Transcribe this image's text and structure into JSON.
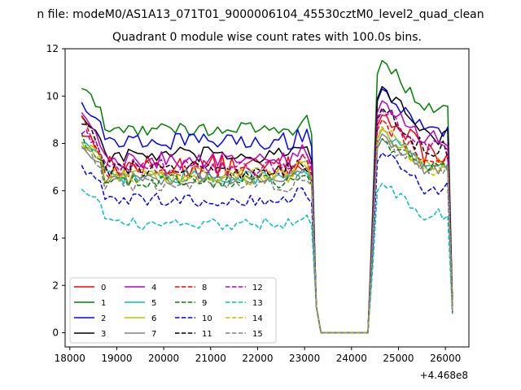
{
  "figure": {
    "suptitle": "n file: modeM0/AS1A13_071T01_9000006104_45530cztM0_level2_quad_clean",
    "title": "Quadrant 0 module wise count rates with 100.0s bins.",
    "offset_text": "+4.468e8"
  },
  "chart_data": {
    "type": "line",
    "title": "Quadrant 0 module wise count rates with 100.0s bins.",
    "xlabel": "",
    "ylabel": "",
    "x_offset": 446800000,
    "xlim": [
      17900,
      26500
    ],
    "ylim": [
      -0.6,
      12.0
    ],
    "xticks": [
      18000,
      19000,
      20000,
      21000,
      22000,
      23000,
      24000,
      25000,
      26000
    ],
    "yticks": [
      0,
      2,
      4,
      6,
      8,
      10,
      12
    ],
    "grid": false,
    "legend_position": "lower-left",
    "legend_columns": 4,
    "segments": [
      {
        "from": 18250,
        "to": 23150,
        "type": "on"
      },
      {
        "from": 23150,
        "to": 23350,
        "type": "fall"
      },
      {
        "from": 23350,
        "to": 24350,
        "type": "off"
      },
      {
        "from": 24350,
        "to": 24650,
        "type": "rise"
      },
      {
        "from": 24650,
        "to": 26100,
        "type": "on"
      },
      {
        "from": 26100,
        "to": 26150,
        "type": "fall"
      }
    ],
    "series": [
      {
        "name": "0",
        "color": "#ff0000",
        "dash": "solid",
        "level1": 7.0,
        "level2": 7.6,
        "start": 8.5,
        "peak": 9.2,
        "end": 1.3,
        "noise": 0.5
      },
      {
        "name": "1",
        "color": "#008000",
        "dash": "solid",
        "level1": 8.6,
        "level2": 9.5,
        "start": 10.4,
        "peak": 11.5,
        "end": 1.2,
        "noise": 0.3
      },
      {
        "name": "2",
        "color": "#0000ff",
        "dash": "solid",
        "level1": 8.1,
        "level2": 8.5,
        "start": 9.8,
        "peak": 10.3,
        "end": 1.1,
        "noise": 0.35
      },
      {
        "name": "3",
        "color": "#000000",
        "dash": "solid",
        "level1": 7.5,
        "level2": 8.3,
        "start": 9.2,
        "peak": 10.4,
        "end": 1.2,
        "noise": 0.35
      },
      {
        "name": "4",
        "color": "#bf00bf",
        "dash": "solid",
        "level1": 7.3,
        "level2": 8.2,
        "start": 9.3,
        "peak": 9.8,
        "end": 1.1,
        "noise": 0.35
      },
      {
        "name": "5",
        "color": "#00bfbf",
        "dash": "solid",
        "level1": 6.6,
        "level2": 7.0,
        "start": 8.0,
        "peak": 8.6,
        "end": 1.0,
        "noise": 0.3
      },
      {
        "name": "6",
        "color": "#bfbf00",
        "dash": "solid",
        "level1": 6.6,
        "level2": 7.1,
        "start": 8.0,
        "peak": 8.6,
        "end": 1.0,
        "noise": 0.35
      },
      {
        "name": "7",
        "color": "#808080",
        "dash": "solid",
        "level1": 6.5,
        "level2": 6.9,
        "start": 7.8,
        "peak": 8.4,
        "end": 0.9,
        "noise": 0.3
      },
      {
        "name": "8",
        "color": "#ff0000",
        "dash": "dashed",
        "level1": 6.9,
        "level2": 7.3,
        "start": 9.0,
        "peak": 9.0,
        "end": 1.2,
        "noise": 0.4
      },
      {
        "name": "9",
        "color": "#008000",
        "dash": "dashed",
        "level1": 6.4,
        "level2": 6.9,
        "start": 8.3,
        "peak": 8.2,
        "end": 1.1,
        "noise": 0.3
      },
      {
        "name": "10",
        "color": "#0000ff",
        "dash": "dashed",
        "level1": 5.6,
        "level2": 6.1,
        "start": 6.9,
        "peak": 7.6,
        "end": 0.8,
        "noise": 0.3
      },
      {
        "name": "11",
        "color": "#000000",
        "dash": "dashed",
        "level1": 6.9,
        "level2": 7.7,
        "start": 9.1,
        "peak": 9.5,
        "end": 1.0,
        "noise": 0.4
      },
      {
        "name": "12",
        "color": "#bf00bf",
        "dash": "dashed",
        "level1": 7.0,
        "level2": 7.9,
        "start": 8.6,
        "peak": 9.4,
        "end": 1.0,
        "noise": 0.35
      },
      {
        "name": "13",
        "color": "#00bfbf",
        "dash": "dashed",
        "level1": 4.6,
        "level2": 5.0,
        "start": 6.2,
        "peak": 6.3,
        "end": 0.8,
        "noise": 0.25
      },
      {
        "name": "14",
        "color": "#bfbf00",
        "dash": "dashed",
        "level1": 6.7,
        "level2": 7.0,
        "start": 8.0,
        "peak": 8.7,
        "end": 1.0,
        "noise": 0.35
      },
      {
        "name": "15",
        "color": "#808080",
        "dash": "dashed",
        "level1": 6.3,
        "level2": 7.0,
        "start": 7.9,
        "peak": 8.2,
        "end": 0.9,
        "noise": 0.35
      }
    ]
  }
}
